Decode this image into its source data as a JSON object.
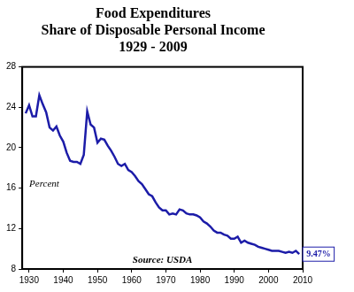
{
  "chart_data": {
    "type": "line",
    "title": [
      "Food Expenditures",
      "Share of Disposable Personal Income",
      "1929 - 2009"
    ],
    "x": [
      1929,
      1930,
      1931,
      1932,
      1933,
      1934,
      1935,
      1936,
      1937,
      1938,
      1939,
      1940,
      1941,
      1942,
      1943,
      1944,
      1945,
      1946,
      1947,
      1948,
      1949,
      1950,
      1951,
      1952,
      1953,
      1954,
      1955,
      1956,
      1957,
      1958,
      1959,
      1960,
      1961,
      1962,
      1963,
      1964,
      1965,
      1966,
      1967,
      1968,
      1969,
      1970,
      1971,
      1972,
      1973,
      1974,
      1975,
      1976,
      1977,
      1978,
      1979,
      1980,
      1981,
      1982,
      1983,
      1984,
      1985,
      1986,
      1987,
      1988,
      1989,
      1990,
      1991,
      1992,
      1993,
      1994,
      1995,
      1996,
      1997,
      1998,
      1999,
      2000,
      2001,
      2002,
      2003,
      2004,
      2005,
      2006,
      2007,
      2008,
      2009
    ],
    "values": [
      23.4,
      24.2,
      23.1,
      23.1,
      25.2,
      24.3,
      23.5,
      22.0,
      21.7,
      22.1,
      21.2,
      20.6,
      19.5,
      18.7,
      18.6,
      18.6,
      18.4,
      19.3,
      23.6,
      22.3,
      22.0,
      20.5,
      20.9,
      20.8,
      20.2,
      19.7,
      19.1,
      18.4,
      18.2,
      18.4,
      17.8,
      17.6,
      17.2,
      16.7,
      16.4,
      15.9,
      15.4,
      15.2,
      14.6,
      14.1,
      13.8,
      13.8,
      13.4,
      13.5,
      13.4,
      13.9,
      13.8,
      13.5,
      13.4,
      13.4,
      13.3,
      13.1,
      12.7,
      12.5,
      12.2,
      11.8,
      11.6,
      11.6,
      11.4,
      11.3,
      11.0,
      11.0,
      11.2,
      10.6,
      10.8,
      10.6,
      10.5,
      10.4,
      10.2,
      10.1,
      10.0,
      9.9,
      9.8,
      9.8,
      9.8,
      9.7,
      9.6,
      9.7,
      9.6,
      9.8,
      9.47
    ],
    "color": "#1c1ca8",
    "xlim": [
      1928,
      2010
    ],
    "xticks": [
      1930,
      1940,
      1950,
      1960,
      1970,
      1980,
      1990,
      2000,
      2010
    ],
    "ylim": [
      8,
      28
    ],
    "yticks": [
      8,
      12,
      16,
      20,
      24,
      28
    ],
    "grid": false,
    "annotations": [
      "Percent",
      "Source: USDA",
      "9.47%"
    ]
  }
}
